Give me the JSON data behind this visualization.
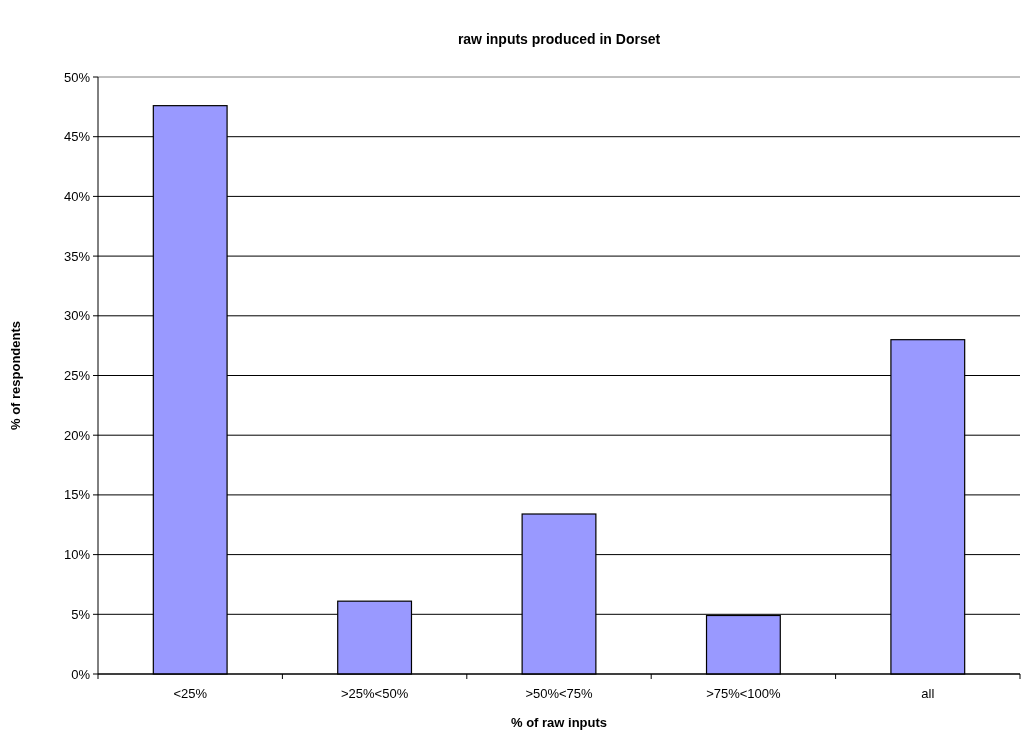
{
  "chart_data": {
    "type": "bar",
    "title": "raw inputs produced in Dorset",
    "xlabel": "% of raw inputs",
    "ylabel": "% of respondents",
    "categories": [
      "<25%",
      ">25%<50%",
      ">50%<75%",
      ">75%<100%",
      "all"
    ],
    "values": [
      47.6,
      6.1,
      13.4,
      4.9,
      28.0
    ],
    "color": "#9999ff",
    "ylim": [
      0,
      50
    ],
    "yticks": [
      {
        "value": 0,
        "label": "0%"
      },
      {
        "value": 5,
        "label": "5%"
      },
      {
        "value": 10,
        "label": "10%"
      },
      {
        "value": 15,
        "label": "15%"
      },
      {
        "value": 20,
        "label": "20%"
      },
      {
        "value": 25,
        "label": "25%"
      },
      {
        "value": 30,
        "label": "30%"
      },
      {
        "value": 35,
        "label": "35%"
      },
      {
        "value": 40,
        "label": "40%"
      },
      {
        "value": 45,
        "label": "45%"
      },
      {
        "value": 50,
        "label": "50%"
      }
    ],
    "grid": "y"
  }
}
